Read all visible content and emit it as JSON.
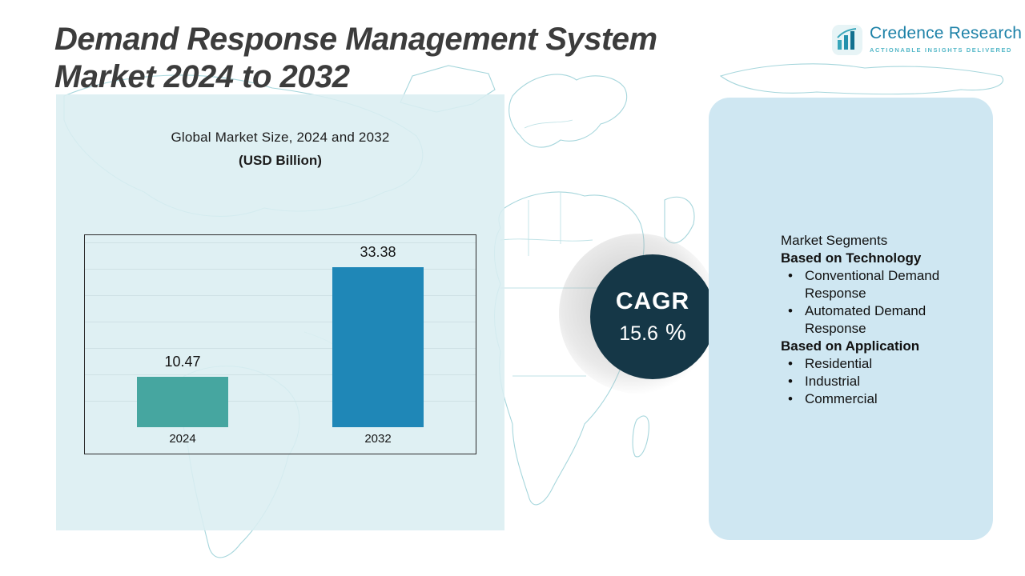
{
  "header": {
    "title_line1": "Demand Response Management System",
    "title_line2": "Market 2024 to 2032",
    "logo": {
      "name": "Credence Research",
      "tagline": "Actionable Insights Delivered",
      "icon": "bar-chart-logo-icon"
    }
  },
  "chart_data": {
    "type": "bar",
    "title": "Global Market Size, 2024 and 2032",
    "subtitle": "(USD Billion)",
    "categories": [
      "2024",
      "2032"
    ],
    "values": [
      10.47,
      33.38
    ],
    "colors": [
      "#46a6a0",
      "#1f87b7"
    ],
    "ylim": [
      0,
      40
    ],
    "grid": true,
    "legend": false,
    "ylabel": "",
    "xlabel": ""
  },
  "cagr": {
    "label": "CAGR",
    "value": "15.6",
    "unit": "%"
  },
  "segments": {
    "title": "Market Segments",
    "groups": [
      {
        "heading": "Based on Technology",
        "items": [
          "Conventional Demand Response",
          "Automated Demand Response"
        ]
      },
      {
        "heading": "Based on Application",
        "items": [
          "Residential",
          "Industrial",
          "Commercial"
        ]
      }
    ]
  },
  "colors": {
    "title_text": "#3c3c3c",
    "cagr_circle": "#153747",
    "left_panel": "#dbeef1",
    "right_panel": "#cfe7f2",
    "map_stroke": "#a6d6dc",
    "logo_text": "#1e82a8"
  }
}
